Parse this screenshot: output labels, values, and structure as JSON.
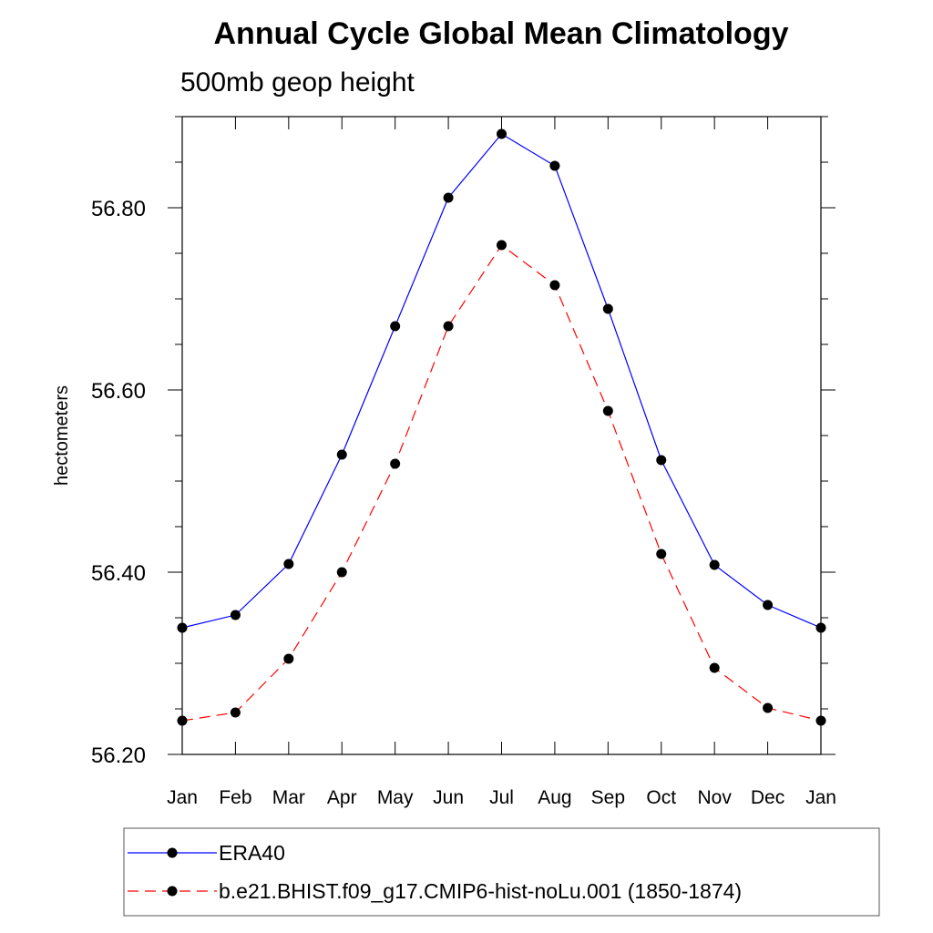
{
  "chart_data": {
    "type": "line",
    "title": "Annual Cycle Global Mean Climatology",
    "subtitle": "500mb geop height",
    "ylabel": "hectometers",
    "xlabel": "",
    "categories": [
      "Jan",
      "Feb",
      "Mar",
      "Apr",
      "May",
      "Jun",
      "Jul",
      "Aug",
      "Sep",
      "Oct",
      "Nov",
      "Dec",
      "Jan"
    ],
    "ylim": [
      56.2,
      56.9
    ],
    "yticks": [
      "56.20",
      "56.40",
      "56.60",
      "56.80"
    ],
    "grid": false,
    "legend_position": "bottom",
    "series": [
      {
        "name": "ERA40",
        "color": "#0000ff",
        "line_style": "solid",
        "marker": "filled-circle",
        "values": [
          56.339,
          56.353,
          56.409,
          56.529,
          56.67,
          56.811,
          56.881,
          56.846,
          56.689,
          56.523,
          56.408,
          56.364,
          56.339
        ]
      },
      {
        "name": "b.e21.BHIST.f09_g17.CMIP6-hist-noLu.001 (1850-1874)",
        "color": "#ff0000",
        "line_style": "dashed",
        "marker": "filled-circle",
        "values": [
          56.237,
          56.246,
          56.305,
          56.4,
          56.519,
          56.67,
          56.759,
          56.715,
          56.577,
          56.42,
          56.295,
          56.251,
          56.237
        ]
      }
    ]
  }
}
